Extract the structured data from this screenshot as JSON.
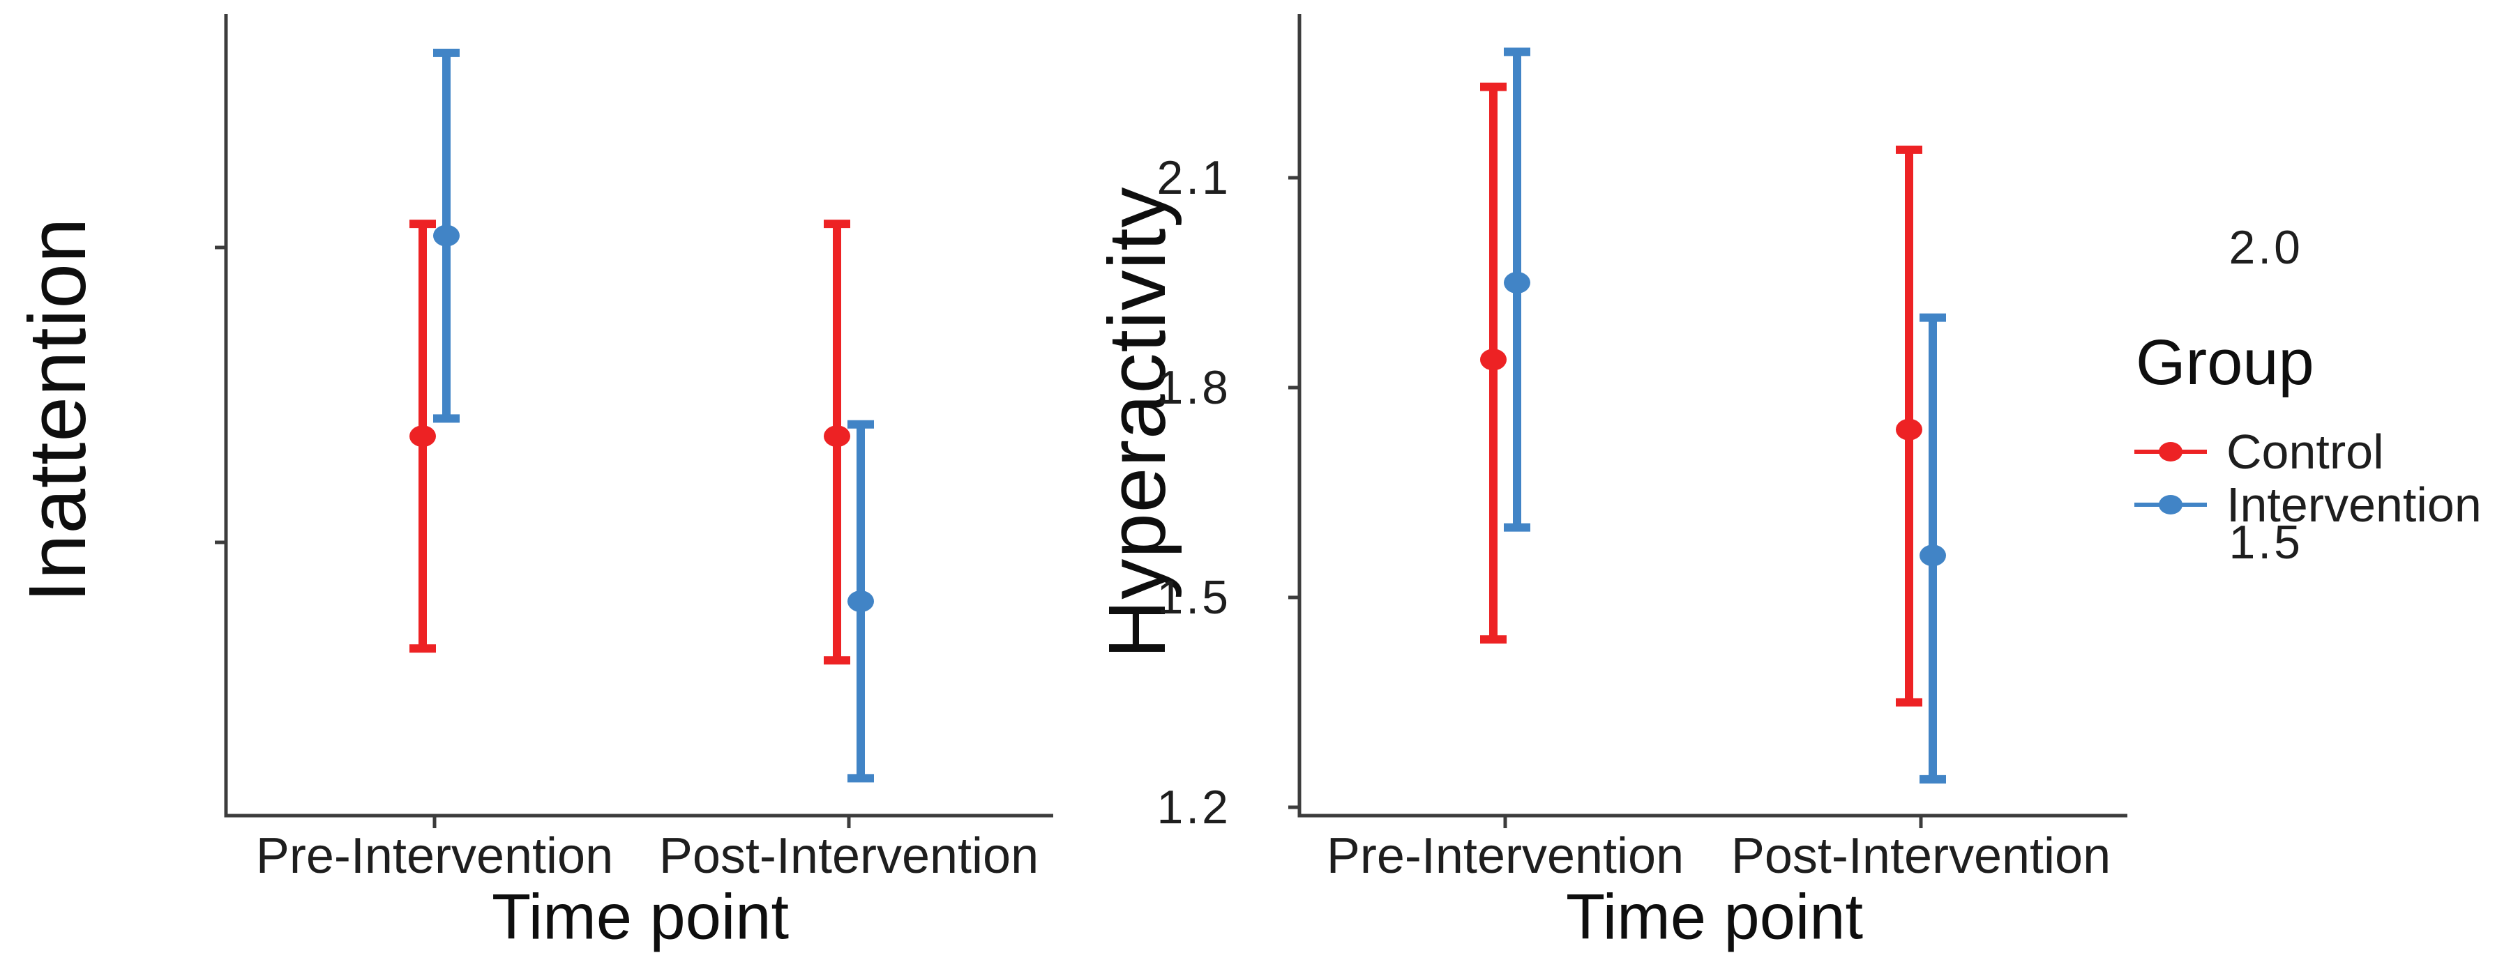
{
  "figure": {
    "background": "#ffffff"
  },
  "legend": {
    "title": "Group",
    "position": "right",
    "items": [
      {
        "label": "Control",
        "color": "#ED2224"
      },
      {
        "label": "Intervention",
        "color": "#4184C6"
      }
    ]
  },
  "chart_data": [
    {
      "type": "pointrange",
      "panel": "left",
      "title": "",
      "ylabel": "Inattention",
      "xlabel": "Time point",
      "categories": [
        "Pre-Intervention",
        "Post-Intervention"
      ],
      "yticks": [
        {
          "label": "2.0",
          "value": 2.0
        },
        {
          "label": "1.5",
          "value": 1.5
        }
      ],
      "ylim": [
        1.04,
        2.4
      ],
      "grid": "off",
      "series": [
        {
          "name": "Control",
          "color": "#ED2224",
          "points": [
            {
              "x": "Pre-Intervention",
              "mean": 1.68,
              "lo": 1.32,
              "hi": 2.04
            },
            {
              "x": "Post-Intervention",
              "mean": 1.68,
              "lo": 1.3,
              "hi": 2.04
            }
          ]
        },
        {
          "name": "Intervention",
          "color": "#4184C6",
          "points": [
            {
              "x": "Pre-Intervention",
              "mean": 2.02,
              "lo": 1.71,
              "hi": 2.33
            },
            {
              "x": "Post-Intervention",
              "mean": 1.4,
              "lo": 1.1,
              "hi": 1.7
            }
          ]
        }
      ]
    },
    {
      "type": "pointrange",
      "panel": "right",
      "title": "",
      "ylabel": "Hyperactivity",
      "xlabel": "Time point",
      "categories": [
        "Pre-Intervention",
        "Post-Intervention"
      ],
      "yticks": [
        {
          "label": "2.1",
          "value": 2.1
        },
        {
          "label": "1.8",
          "value": 1.8
        },
        {
          "label": "1.5",
          "value": 1.5
        },
        {
          "label": "1.2",
          "value": 1.2
        }
      ],
      "ylim": [
        1.19,
        2.33
      ],
      "grid": "off",
      "series": [
        {
          "name": "Control",
          "color": "#ED2224",
          "points": [
            {
              "x": "Pre-Intervention",
              "mean": 1.84,
              "lo": 1.44,
              "hi": 2.23
            },
            {
              "x": "Post-Intervention",
              "mean": 1.74,
              "lo": 1.35,
              "hi": 2.14
            }
          ]
        },
        {
          "name": "Intervention",
          "color": "#4184C6",
          "points": [
            {
              "x": "Pre-Intervention",
              "mean": 1.95,
              "lo": 1.6,
              "hi": 2.28
            },
            {
              "x": "Post-Intervention",
              "mean": 1.56,
              "lo": 1.24,
              "hi": 1.9
            }
          ]
        }
      ]
    }
  ]
}
